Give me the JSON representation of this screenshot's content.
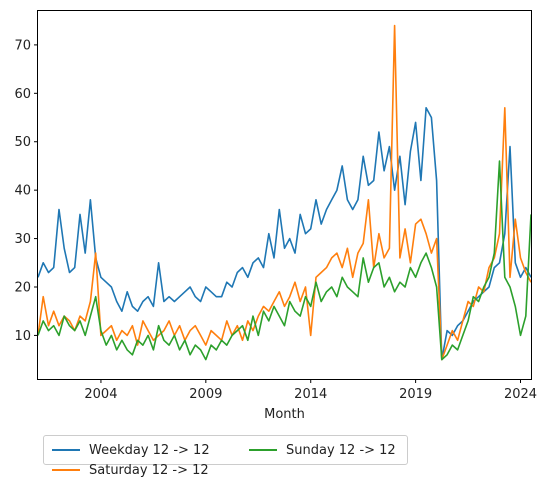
{
  "chart_data": {
    "type": "line",
    "title": "",
    "xlabel": "Month",
    "ylabel": "",
    "xlim": [
      2001.0,
      2024.5
    ],
    "ylim": [
      1,
      77
    ],
    "x_ticks": [
      2004,
      2009,
      2014,
      2019,
      2024
    ],
    "y_ticks": [
      10,
      20,
      30,
      40,
      50,
      60,
      70
    ],
    "grid": false,
    "legend_position": "bottom-left, below axes, 2 columns",
    "series": [
      {
        "name": "Weekday 12 -> 12",
        "color": "#1f77b4",
        "x": [
          2001.0,
          2001.25,
          2001.5,
          2001.75,
          2002.0,
          2002.25,
          2002.5,
          2002.75,
          2003.0,
          2003.25,
          2003.5,
          2003.75,
          2004.0,
          2004.25,
          2004.5,
          2004.75,
          2005.0,
          2005.25,
          2005.5,
          2005.75,
          2006.0,
          2006.25,
          2006.5,
          2006.75,
          2007.0,
          2007.25,
          2007.5,
          2007.75,
          2008.0,
          2008.25,
          2008.5,
          2008.75,
          2009.0,
          2009.25,
          2009.5,
          2009.75,
          2010.0,
          2010.25,
          2010.5,
          2010.75,
          2011.0,
          2011.25,
          2011.5,
          2011.75,
          2012.0,
          2012.25,
          2012.5,
          2012.75,
          2013.0,
          2013.25,
          2013.5,
          2013.75,
          2014.0,
          2014.25,
          2014.5,
          2014.75,
          2015.0,
          2015.25,
          2015.5,
          2015.75,
          2016.0,
          2016.25,
          2016.5,
          2016.75,
          2017.0,
          2017.25,
          2017.5,
          2017.75,
          2018.0,
          2018.25,
          2018.5,
          2018.75,
          2019.0,
          2019.25,
          2019.5,
          2019.75,
          2020.0,
          2020.25,
          2020.5,
          2020.75,
          2021.0,
          2021.25,
          2021.5,
          2021.75,
          2022.0,
          2022.25,
          2022.5,
          2022.75,
          2023.0,
          2023.25,
          2023.5,
          2023.75,
          2024.0,
          2024.25,
          2024.5
        ],
        "values": [
          22,
          25,
          23,
          24,
          36,
          28,
          23,
          24,
          35,
          27,
          38,
          26,
          22,
          21,
          20,
          17,
          15,
          19,
          16,
          15,
          17,
          18,
          16,
          25,
          17,
          18,
          17,
          18,
          19,
          20,
          18,
          17,
          20,
          19,
          18,
          18,
          21,
          20,
          23,
          24,
          22,
          25,
          26,
          24,
          31,
          26,
          36,
          28,
          30,
          27,
          35,
          31,
          32,
          38,
          33,
          36,
          38,
          40,
          45,
          38,
          36,
          38,
          47,
          41,
          42,
          52,
          44,
          49,
          40,
          47,
          37,
          48,
          54,
          42,
          57,
          55,
          42,
          5,
          11,
          10,
          12,
          13,
          15,
          17,
          18,
          19,
          20,
          24,
          25,
          31,
          49,
          25,
          22,
          24,
          22
        ],
        "note": "values approximate (sampled)"
      },
      {
        "name": "Saturday 12 -> 12",
        "color": "#ff7f0e",
        "x": [
          2001.0,
          2001.25,
          2001.5,
          2001.75,
          2002.0,
          2002.25,
          2002.5,
          2002.75,
          2003.0,
          2003.25,
          2003.5,
          2003.75,
          2004.0,
          2004.25,
          2004.5,
          2004.75,
          2005.0,
          2005.25,
          2005.5,
          2005.75,
          2006.0,
          2006.25,
          2006.5,
          2006.75,
          2007.0,
          2007.25,
          2007.5,
          2007.75,
          2008.0,
          2008.25,
          2008.5,
          2008.75,
          2009.0,
          2009.25,
          2009.5,
          2009.75,
          2010.0,
          2010.25,
          2010.5,
          2010.75,
          2011.0,
          2011.25,
          2011.5,
          2011.75,
          2012.0,
          2012.25,
          2012.5,
          2012.75,
          2013.0,
          2013.25,
          2013.5,
          2013.75,
          2014.0,
          2014.25,
          2014.5,
          2014.75,
          2015.0,
          2015.25,
          2015.5,
          2015.75,
          2016.0,
          2016.25,
          2016.5,
          2016.75,
          2017.0,
          2017.25,
          2017.5,
          2017.75,
          2018.0,
          2018.25,
          2018.5,
          2018.75,
          2019.0,
          2019.25,
          2019.5,
          2019.75,
          2020.0,
          2020.25,
          2020.5,
          2020.75,
          2021.0,
          2021.25,
          2021.5,
          2021.75,
          2022.0,
          2022.25,
          2022.5,
          2022.75,
          2023.0,
          2023.25,
          2023.5,
          2023.75,
          2024.0,
          2024.25,
          2024.5
        ],
        "values": [
          10,
          18,
          12,
          15,
          12,
          14,
          13,
          11,
          14,
          13,
          17,
          27,
          10,
          11,
          12,
          9,
          11,
          10,
          12,
          8,
          13,
          11,
          9,
          10,
          11,
          13,
          10,
          12,
          9,
          11,
          12,
          10,
          8,
          11,
          10,
          9,
          13,
          10,
          12,
          9,
          13,
          11,
          14,
          16,
          15,
          17,
          19,
          16,
          18,
          21,
          17,
          20,
          10,
          22,
          23,
          24,
          26,
          27,
          24,
          28,
          22,
          27,
          29,
          38,
          24,
          31,
          26,
          28,
          74,
          26,
          32,
          25,
          33,
          34,
          31,
          27,
          30,
          5,
          8,
          11,
          9,
          13,
          17,
          16,
          20,
          19,
          24,
          26,
          31,
          57,
          22,
          34,
          26,
          23,
          21
        ],
        "note": "values approximate (sampled)"
      },
      {
        "name": "Sunday 12 -> 12",
        "color": "#2ca02c",
        "x": [
          2001.0,
          2001.25,
          2001.5,
          2001.75,
          2002.0,
          2002.25,
          2002.5,
          2002.75,
          2003.0,
          2003.25,
          2003.5,
          2003.75,
          2004.0,
          2004.25,
          2004.5,
          2004.75,
          2005.0,
          2005.25,
          2005.5,
          2005.75,
          2006.0,
          2006.25,
          2006.5,
          2006.75,
          2007.0,
          2007.25,
          2007.5,
          2007.75,
          2008.0,
          2008.25,
          2008.5,
          2008.75,
          2009.0,
          2009.25,
          2009.5,
          2009.75,
          2010.0,
          2010.25,
          2010.5,
          2010.75,
          2011.0,
          2011.25,
          2011.5,
          2011.75,
          2012.0,
          2012.25,
          2012.5,
          2012.75,
          2013.0,
          2013.25,
          2013.5,
          2013.75,
          2014.0,
          2014.25,
          2014.5,
          2014.75,
          2015.0,
          2015.25,
          2015.5,
          2015.75,
          2016.0,
          2016.25,
          2016.5,
          2016.75,
          2017.0,
          2017.25,
          2017.5,
          2017.75,
          2018.0,
          2018.25,
          2018.5,
          2018.75,
          2019.0,
          2019.25,
          2019.5,
          2019.75,
          2020.0,
          2020.25,
          2020.5,
          2020.75,
          2021.0,
          2021.25,
          2021.5,
          2021.75,
          2022.0,
          2022.25,
          2022.5,
          2022.75,
          2023.0,
          2023.25,
          2023.5,
          2023.75,
          2024.0,
          2024.25,
          2024.5
        ],
        "values": [
          10,
          13,
          11,
          12,
          10,
          14,
          12,
          11,
          13,
          10,
          14,
          18,
          11,
          8,
          10,
          7,
          9,
          7,
          6,
          9,
          8,
          10,
          7,
          12,
          9,
          8,
          10,
          7,
          9,
          6,
          8,
          7,
          5,
          8,
          7,
          9,
          8,
          10,
          11,
          12,
          9,
          14,
          10,
          15,
          13,
          16,
          14,
          12,
          17,
          15,
          14,
          18,
          16,
          21,
          17,
          19,
          20,
          18,
          22,
          20,
          19,
          18,
          26,
          21,
          24,
          25,
          20,
          22,
          19,
          21,
          20,
          24,
          22,
          25,
          27,
          24,
          20,
          5,
          6,
          8,
          7,
          10,
          13,
          18,
          17,
          20,
          22,
          27,
          46,
          22,
          20,
          16,
          10,
          14,
          35
        ],
        "note": "values approximate (sampled)"
      }
    ]
  }
}
